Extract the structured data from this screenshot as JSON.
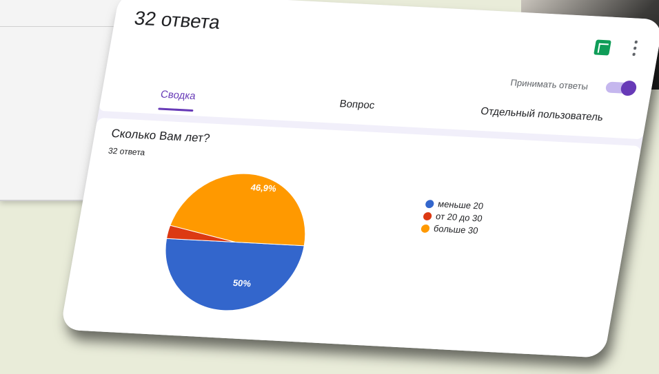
{
  "header": {
    "title": "32 ответа",
    "accepting_label": "Принимать ответы"
  },
  "tabs": [
    "Сводка",
    "Вопрос",
    "Отдельный пользователь"
  ],
  "question": {
    "title": "Сколько Вам лет?",
    "count": "32 ответа"
  },
  "chart_data": {
    "type": "pie",
    "categories": [
      "меньше 20",
      "от 20 до 30",
      "больше 30"
    ],
    "values": [
      50,
      3.1,
      46.9
    ],
    "value_labels": [
      "50%",
      null,
      "46,9%"
    ],
    "colors": [
      "#3366cc",
      "#dc3912",
      "#ff9900"
    ]
  }
}
